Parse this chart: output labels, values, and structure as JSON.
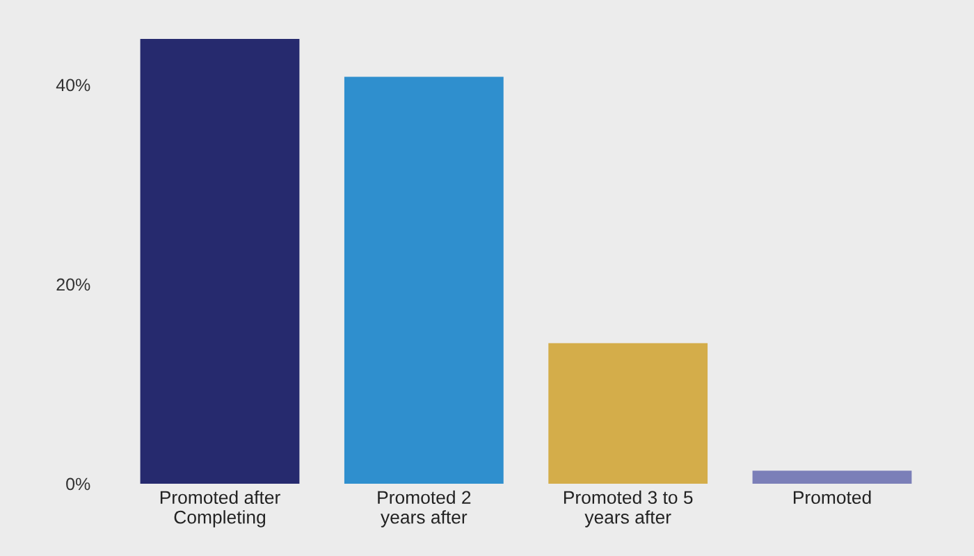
{
  "chart_data": {
    "type": "bar",
    "categories": [
      "Promoted after\nCompleting",
      "Promoted 2\nyears after",
      "Promoted 3 to 5\nyears after",
      "Promoted"
    ],
    "values": [
      44.6,
      40.8,
      14.1,
      1.3
    ],
    "colors": [
      "#262a6e",
      "#2f8fce",
      "#d4ad4a",
      "#7b7fb8"
    ],
    "ylim": [
      0,
      48.5
    ],
    "yticks": [
      {
        "value": 0,
        "label": "0%"
      },
      {
        "value": 20,
        "label": "20%"
      },
      {
        "value": 40,
        "label": "40%"
      }
    ],
    "grid": false
  }
}
